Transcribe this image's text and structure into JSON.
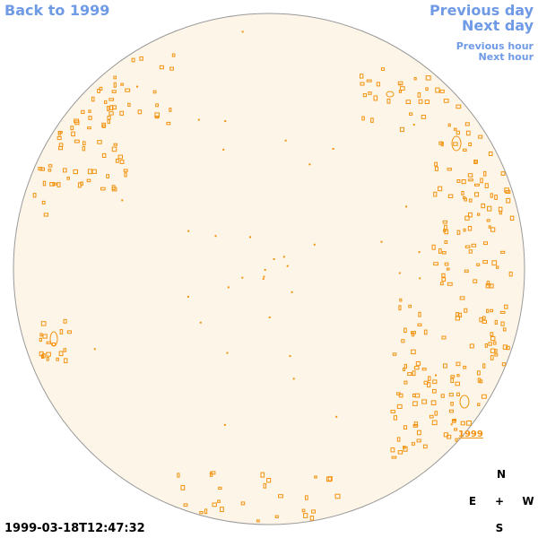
{
  "nav": {
    "back": "Back to 1999",
    "previous_day": "Previous day",
    "next_day": "Next day",
    "previous_hour": "Previous hour",
    "next_hour": "Next hour"
  },
  "disk": {
    "fill_color": "#fdf6e8",
    "outline_color": "#999999",
    "feature_color": "#f2920f"
  },
  "region_label": "1999",
  "compass": {
    "north": "N",
    "east": "E",
    "center": "+",
    "west": "W",
    "south": "S"
  },
  "timestamp": "1999-03-18T12:47:32",
  "colors": {
    "link": "#6f9ae6",
    "accent": "#f2920f"
  }
}
